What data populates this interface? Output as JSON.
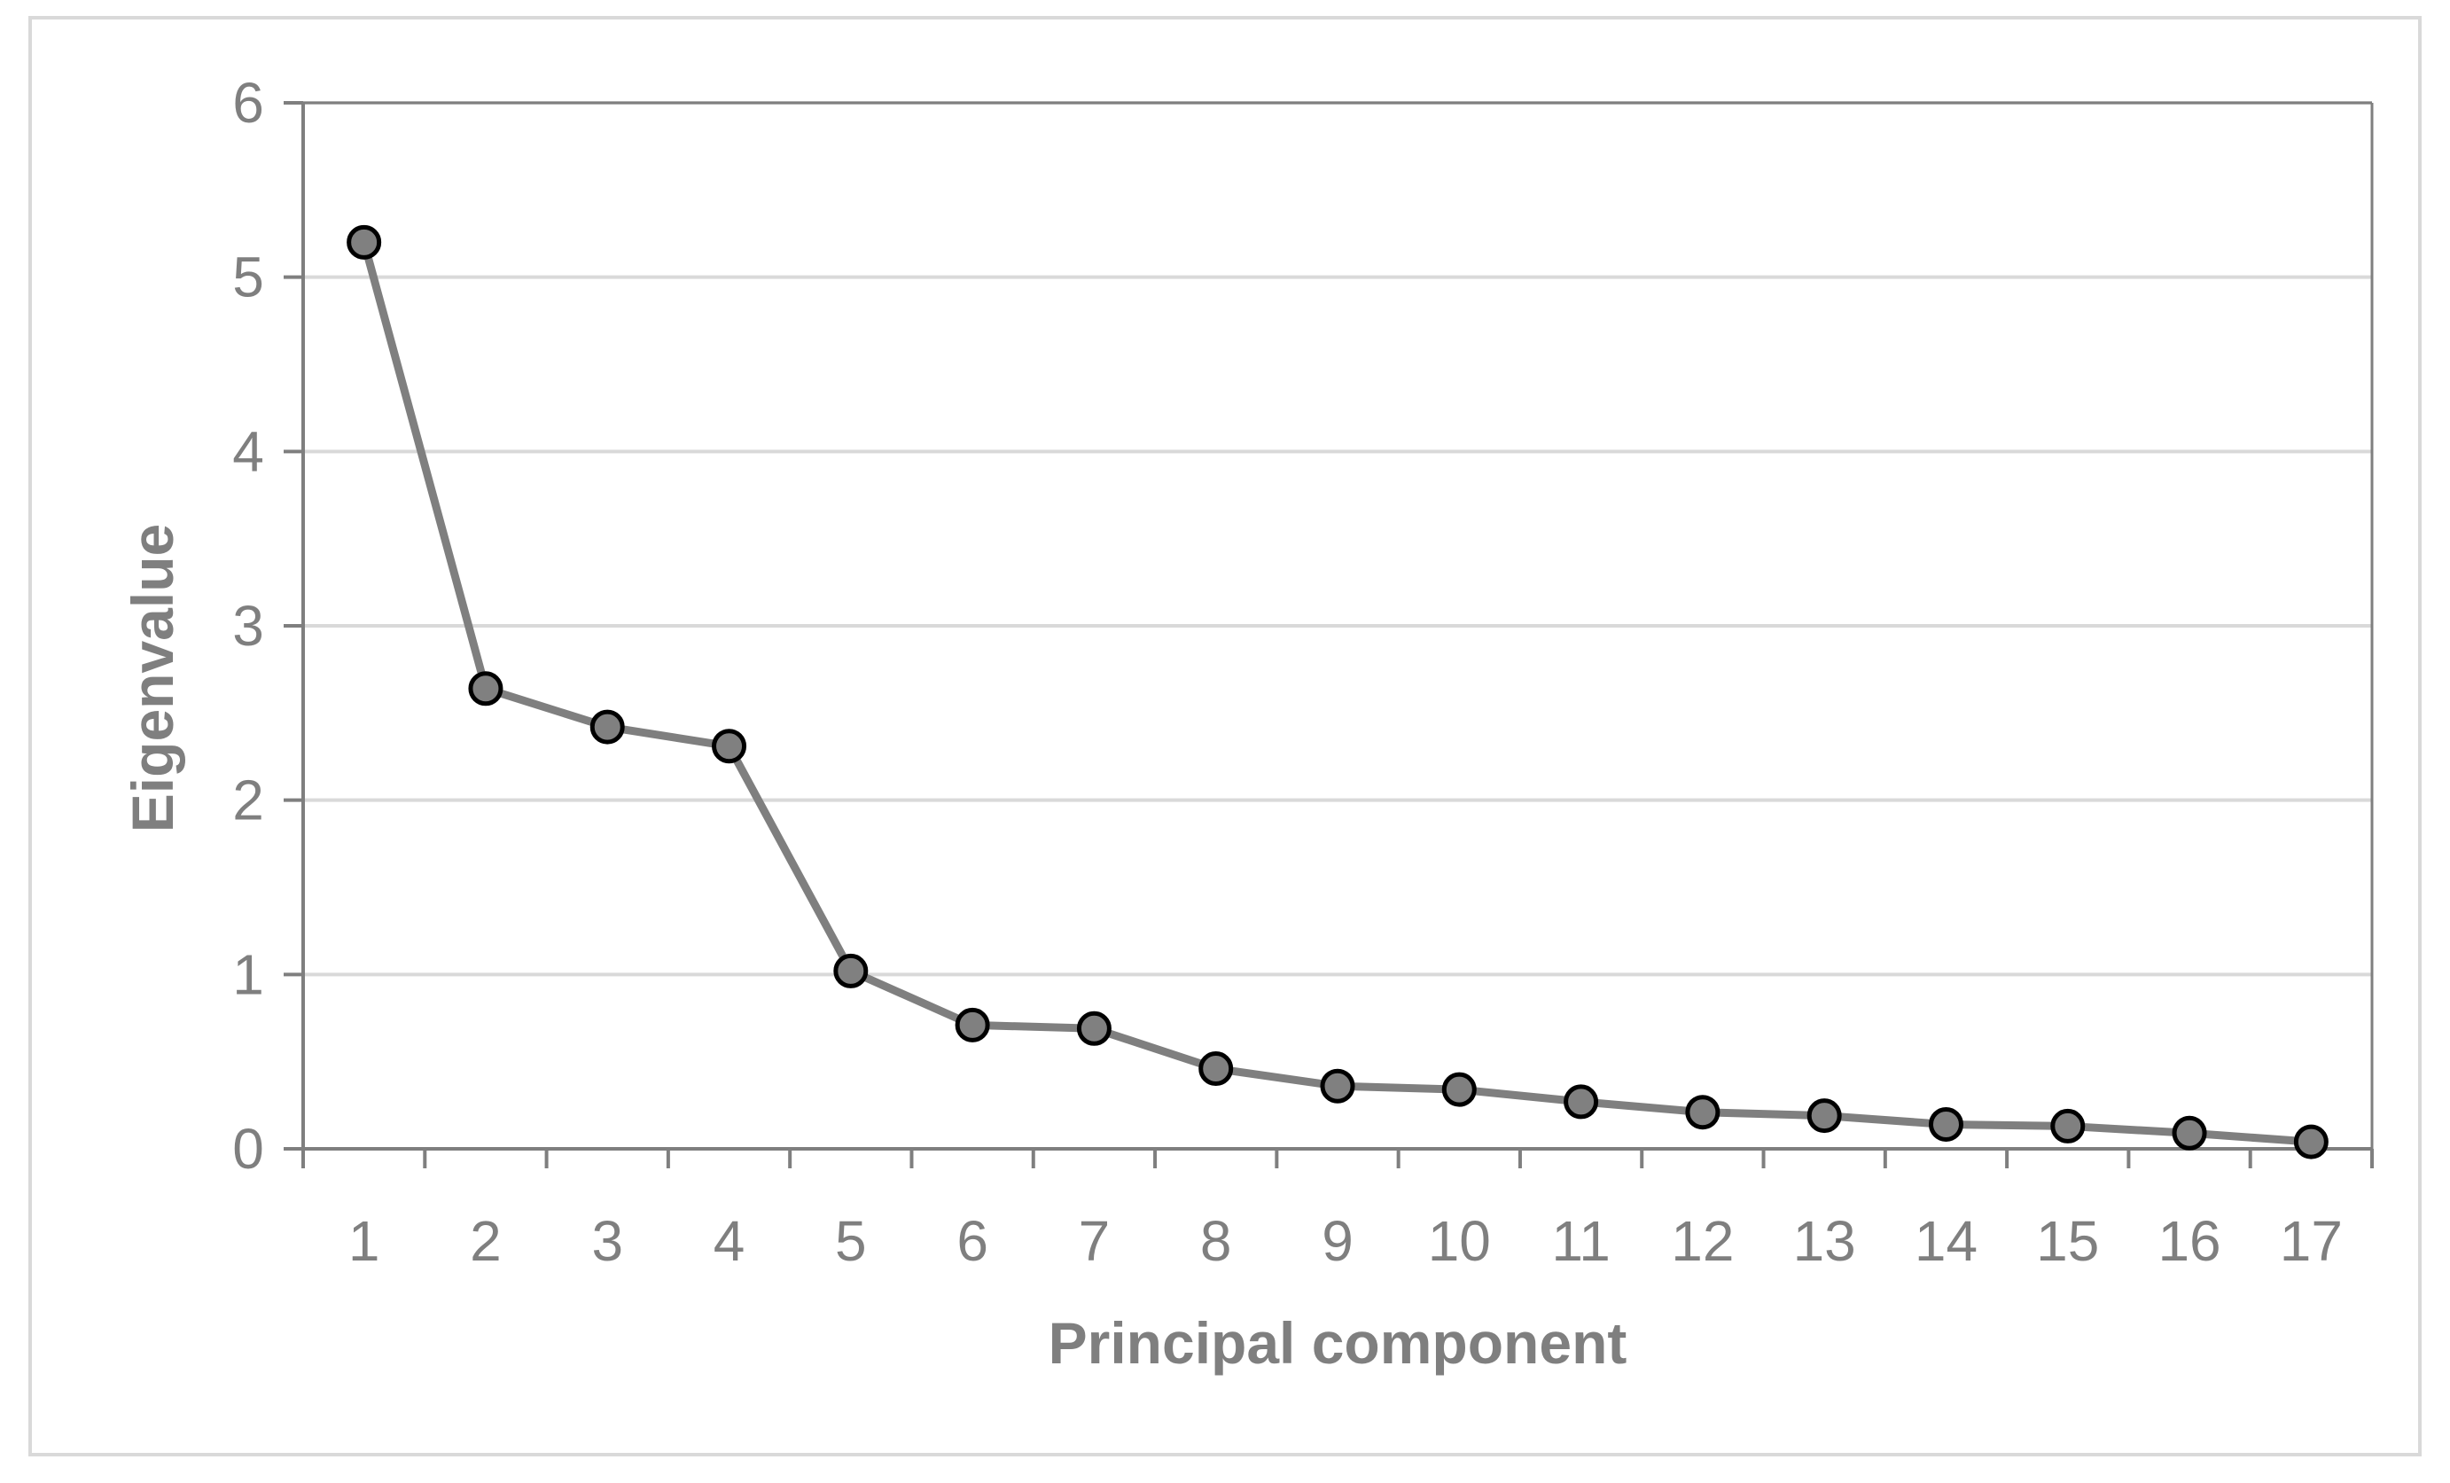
{
  "chart_data": {
    "type": "line",
    "title": "",
    "xlabel": "Principal component",
    "ylabel": "Eigenvalue",
    "x": [
      1,
      2,
      3,
      4,
      5,
      6,
      7,
      8,
      9,
      10,
      11,
      12,
      13,
      14,
      15,
      16,
      17
    ],
    "x_tick_labels": [
      "1",
      "2",
      "3",
      "4",
      "5",
      "6",
      "7",
      "8",
      "9",
      "10",
      "11",
      "12",
      "13",
      "14",
      "15",
      "16",
      "17"
    ],
    "y_tick_labels": [
      "0",
      "1",
      "2",
      "3",
      "4",
      "5",
      "6"
    ],
    "series": [
      {
        "values": [
          5.2,
          2.64,
          2.42,
          2.31,
          1.02,
          0.71,
          0.69,
          0.46,
          0.36,
          0.34,
          0.27,
          0.21,
          0.19,
          0.14,
          0.13,
          0.09,
          0.04
        ]
      }
    ],
    "ylim": [
      0,
      6
    ],
    "grid": true,
    "legend": "none",
    "colors": {
      "line": "#7f7f7f",
      "marker_fill": "#808080",
      "marker_stroke": "#000000",
      "grid": "#d9d9d9",
      "axis": "#7f7f7f"
    }
  }
}
